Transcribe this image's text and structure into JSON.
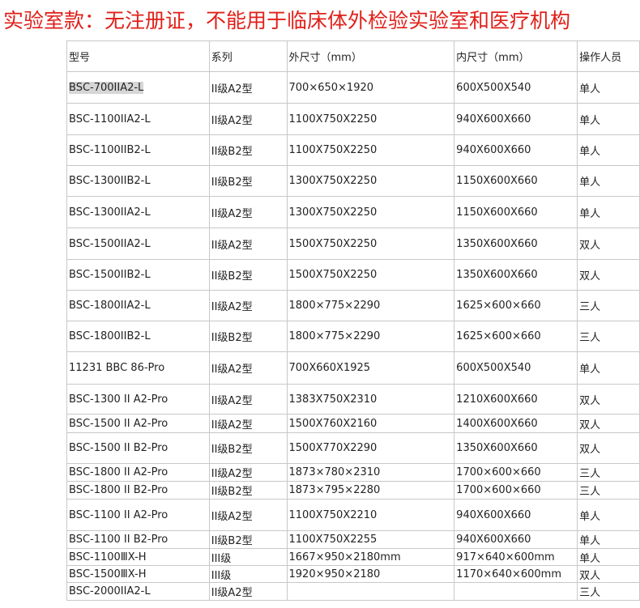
{
  "title": "实验室款：无注册证，不能用于临床体外检验实验室和医疗机构",
  "headers": [
    "型号",
    "系列",
    "外尺寸（mm）",
    "内尺寸（mm）",
    "操作人员"
  ],
  "rows": [
    [
      "BSC-700IIA2-L",
      "II级A2型",
      "700×650×1920",
      "600X500X540",
      "单人"
    ],
    [
      "BSC-1100IIA2-L",
      "II级A2型",
      "1100X750X2250",
      "940X600X660",
      "单人"
    ],
    [
      "BSC-1100IIB2-L",
      "II级B2型",
      "1100X750X2250",
      "940X600X660",
      "单人"
    ],
    [
      "BSC-1300IIB2-L",
      "II级B2型",
      "1300X750X2250",
      "1150X600X660",
      "单人"
    ],
    [
      "BSC-1300IIA2-L",
      "II级A2型",
      "1300X750X2250",
      "1150X600X660",
      "单人"
    ],
    [
      "BSC-1500IIA2-L",
      "II级A2型",
      "1500X750X2250",
      "1350X600X660",
      "双人"
    ],
    [
      "BSC-1500IIB2-L",
      "II级B2型",
      "1500X750X2250",
      "1350X600X660",
      "双人"
    ],
    [
      "BSC-1800IIA2-L",
      "II级A2型",
      "1800×775×2290",
      "1625×600×660",
      "三人"
    ],
    [
      "BSC-1800IIB2-L",
      "II级B2型",
      "1800×775×2290",
      "1625×600×660",
      "三人"
    ],
    [
      "11231 BBC 86-Pro",
      "II级A2型",
      "700X660X1925",
      "600X500X540",
      "单人"
    ],
    [
      "BSC-1300 II A2-Pro",
      "II级A2型",
      "1383X750X2310",
      "1210X600X660",
      "双人"
    ],
    [
      "BSC-1500 II A2-Pro",
      "II级A2型",
      "1500X760X2160",
      "1400X600X660",
      "双人"
    ],
    [
      "BSC-1500 II B2-Pro",
      "II级B2型",
      "1500X770X2290",
      "1350X600X660",
      "双人"
    ],
    [
      "BSC-1800 II A2-Pro",
      "II级A2型",
      "1873×780×2310",
      "1700×600×660",
      "三人"
    ],
    [
      "BSC-1800 II B2-Pro",
      "II级B2型",
      "1873×795×2280",
      "1700×600×660",
      "三人"
    ],
    [
      "BSC-1100 II A2-Pro",
      "II级A2型",
      "1100X750X2210",
      "940X600X660",
      "单人"
    ],
    [
      "BSC-1100 II B2-Pro",
      "II级B2型",
      "1100X750X2255",
      "940X600X660",
      "单人"
    ],
    [
      "BSC-1100ⅢX-H",
      "III级",
      "1667×950×2180mm",
      "917×640×600mm",
      "单人"
    ],
    [
      "BSC-1500ⅢX-H",
      "III级",
      "1920×950×2180",
      "1170×640×600mm",
      "双人"
    ],
    [
      "BSC-2000IIA2-L",
      "II级A2型",
      "",
      "",
      "三人"
    ]
  ]
}
